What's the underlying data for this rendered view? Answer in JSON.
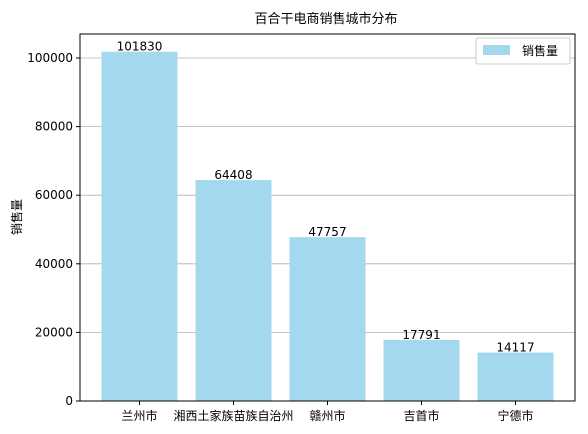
{
  "chart_data": {
    "type": "bar",
    "title": "百合干电商销售城市分布",
    "xlabel": "",
    "ylabel": "销售量",
    "categories": [
      "兰州市",
      "湘西土家族苗族自治州",
      "赣州市",
      "吉首市",
      "宁德市"
    ],
    "series": [
      {
        "name": "销售量",
        "values": [
          101830,
          64408,
          47757,
          17791,
          14117
        ]
      }
    ],
    "ylim": [
      0,
      107000
    ],
    "yticks": [
      0,
      20000,
      40000,
      60000,
      80000,
      100000
    ],
    "grid": "horizontal",
    "legend_position": "top-right",
    "bar_color": "#a3d8ee"
  }
}
